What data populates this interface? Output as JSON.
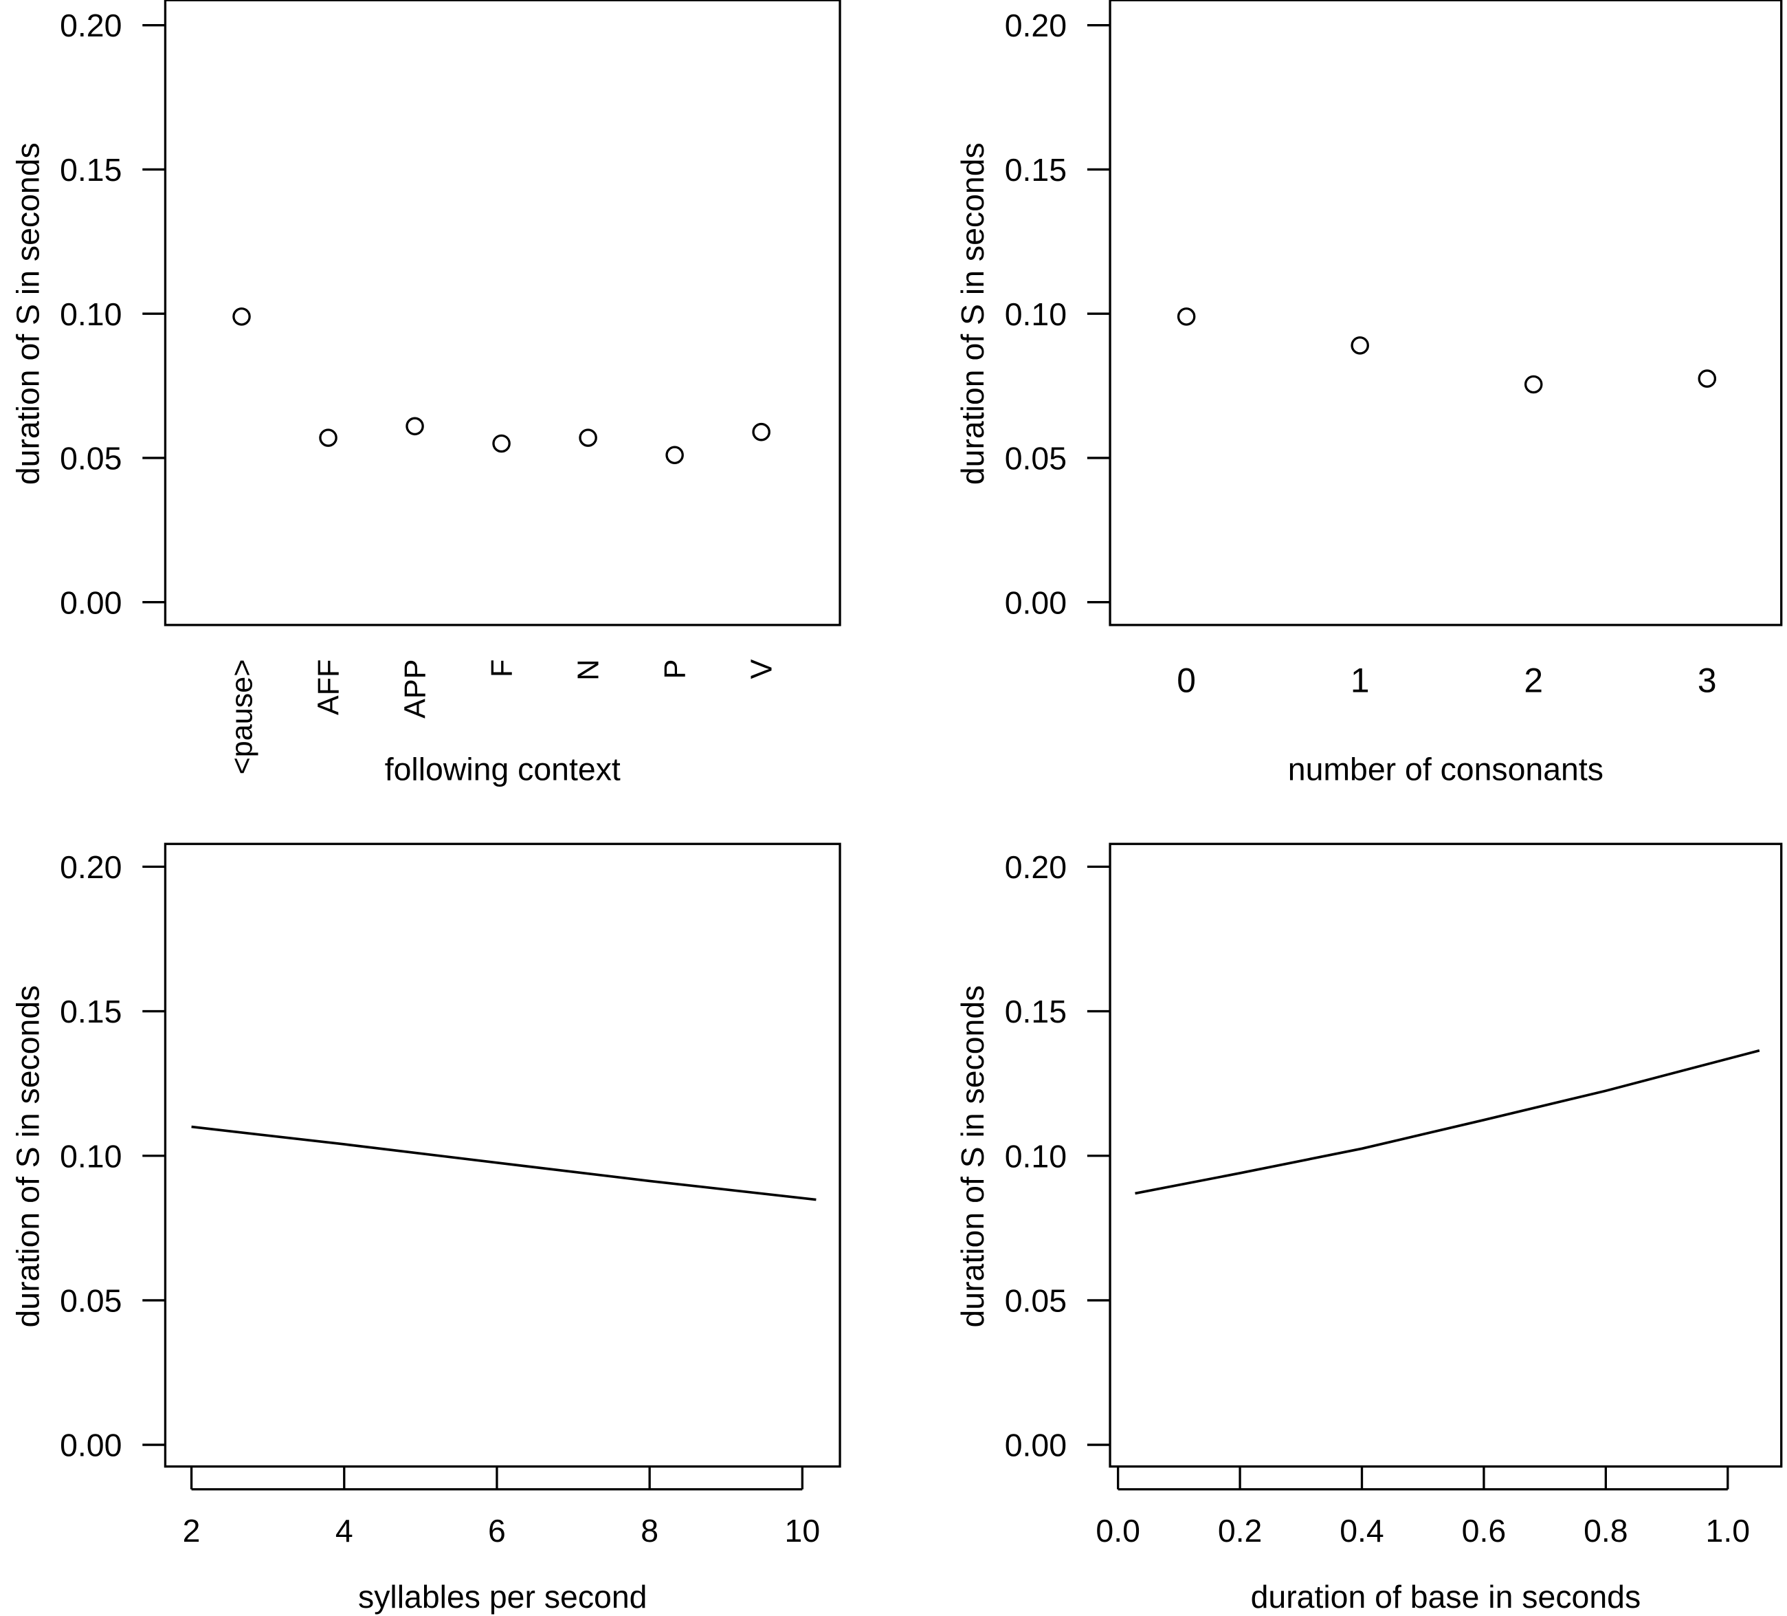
{
  "chart_data": [
    {
      "type": "scatter",
      "xlabel": "following context",
      "ylabel": "duration of S in seconds",
      "categories": [
        "<pause>",
        "AFF",
        "APP",
        "F",
        "N",
        "P",
        "V"
      ],
      "values": [
        0.099,
        0.057,
        0.061,
        0.055,
        0.057,
        0.051,
        0.059
      ],
      "ylim": [
        0,
        0.2
      ],
      "yticks": [
        "0.00",
        "0.05",
        "0.10",
        "0.15",
        "0.20"
      ],
      "x_tick_orientation": "vertical",
      "marker": "open-circle",
      "grid": false
    },
    {
      "type": "scatter",
      "xlabel": "number of consonants",
      "ylabel": "duration of S in seconds",
      "categories": [
        "0",
        "1",
        "2",
        "3"
      ],
      "values": [
        0.099,
        0.089,
        0.0755,
        0.0775
      ],
      "ylim": [
        0,
        0.2
      ],
      "yticks": [
        "0.00",
        "0.05",
        "0.10",
        "0.15",
        "0.20"
      ],
      "marker": "open-circle",
      "grid": false
    },
    {
      "type": "line",
      "xlabel": "syllables per second",
      "ylabel": "duration of S in seconds",
      "x": [
        2,
        4,
        6,
        8,
        10.18
      ],
      "y": [
        0.11,
        0.104,
        0.0976,
        0.0913,
        0.0848
      ],
      "xticks": [
        "2",
        "4",
        "6",
        "8",
        "10"
      ],
      "ylim": [
        0,
        0.2
      ],
      "yticks": [
        "0.00",
        "0.05",
        "0.10",
        "0.15",
        "0.20"
      ],
      "grid": false
    },
    {
      "type": "line",
      "xlabel": "duration of base in seconds",
      "ylabel": "duration of S in seconds",
      "x": [
        0.028,
        0.2,
        0.4,
        0.6,
        0.8,
        1.052
      ],
      "y": [
        0.087,
        0.094,
        0.1025,
        0.1124,
        0.1225,
        0.1364
      ],
      "xticks": [
        "0.0",
        "0.2",
        "0.4",
        "0.6",
        "0.8",
        "1.0"
      ],
      "ylim": [
        0,
        0.2
      ],
      "yticks": [
        "0.00",
        "0.05",
        "0.10",
        "0.15",
        "0.20"
      ],
      "grid": false
    }
  ]
}
